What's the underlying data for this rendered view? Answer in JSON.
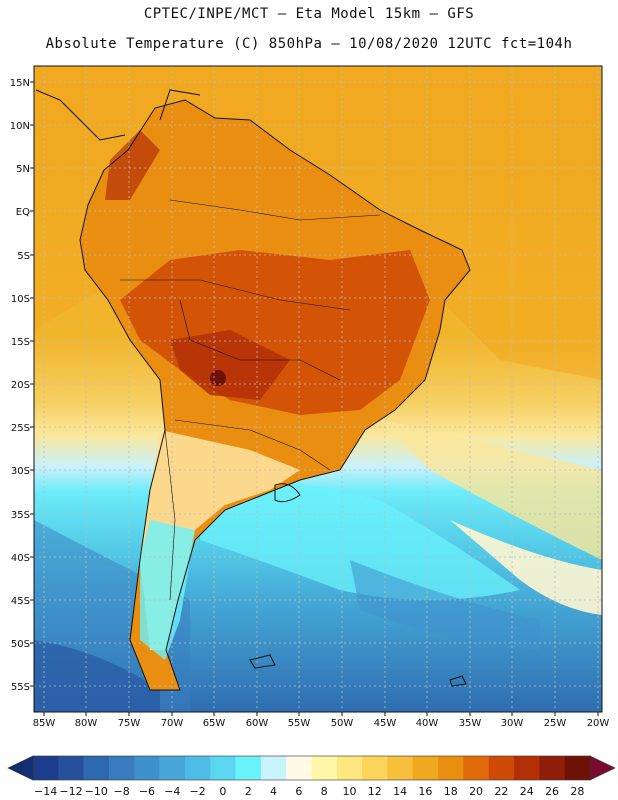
{
  "header": {
    "line1": "CPTEC/INPE/MCT –  Eta Model 15km – GFS",
    "line2": "Absolute Temperature (C) 850hPa – 10/08/2020 12UTC fct=104h"
  },
  "map": {
    "lat_labels": [
      "15N",
      "10N",
      "5N",
      "EQ",
      "5S",
      "10S",
      "15S",
      "20S",
      "25S",
      "30S",
      "35S",
      "40S",
      "45S",
      "50S",
      "55S"
    ],
    "lon_labels": [
      "85W",
      "80W",
      "75W",
      "70W",
      "65W",
      "60W",
      "55W",
      "50W",
      "45W",
      "40W",
      "35W",
      "30W",
      "25W",
      "20W"
    ]
  },
  "colorbar": {
    "labels": [
      "-14",
      "-12",
      "-10",
      "-8",
      "-6",
      "-4",
      "-2",
      "0",
      "2",
      "4",
      "6",
      "8",
      "10",
      "12",
      "14",
      "16",
      "18",
      "20",
      "22",
      "24",
      "26",
      "28"
    ],
    "colors": [
      "#1b3d8a",
      "#25519c",
      "#2e68ad",
      "#3a7dbf",
      "#3f91cc",
      "#46a6d8",
      "#4fbde3",
      "#5ad6ee",
      "#6af2fb",
      "#c8f4ff",
      "#fff9e6",
      "#fff7a8",
      "#ffe780",
      "#fdd45a",
      "#f6bf3c",
      "#f0a81f",
      "#ea8e12",
      "#e06a0a",
      "#cf4a06",
      "#b33007",
      "#8f1e08",
      "#6e1208"
    ],
    "under_color": "#112e6f",
    "over_color": "#7a0a30"
  }
}
